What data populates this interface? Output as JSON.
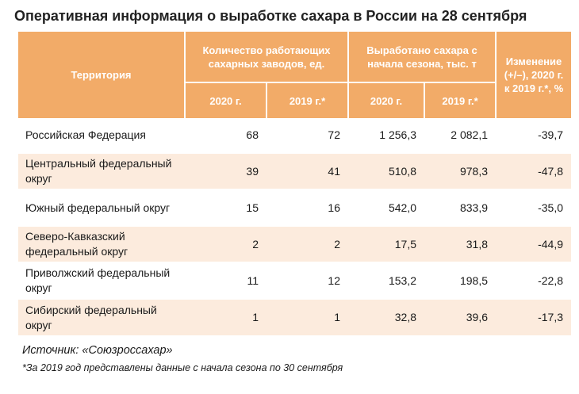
{
  "title": "Оперативная информация о выработке сахара в России на 28 сентября",
  "table": {
    "header": {
      "territory": "Территория",
      "plants_group": "Количество работающих сахарных заводов, ед.",
      "produced_group": "Выработано сахара с начала сезона, тыс. т",
      "change": "Изменение (+/–), 2020 г. к 2019 г.*, %",
      "year_2020": "2020 г.",
      "year_2019": "2019 г.*"
    },
    "rows": [
      {
        "territory": "Российская Федерация",
        "plants_2020": "68",
        "plants_2019": "72",
        "sugar_2020": "1 256,3",
        "sugar_2019": "2 082,1",
        "change": "-39,7"
      },
      {
        "territory": "Центральный федеральный округ",
        "plants_2020": "39",
        "plants_2019": "41",
        "sugar_2020": "510,8",
        "sugar_2019": "978,3",
        "change": "-47,8"
      },
      {
        "territory": "Южный федеральный округ",
        "plants_2020": "15",
        "plants_2019": "16",
        "sugar_2020": "542,0",
        "sugar_2019": "833,9",
        "change": "-35,0"
      },
      {
        "territory": "Северо-Кавказский федеральный округ",
        "plants_2020": "2",
        "plants_2019": "2",
        "sugar_2020": "17,5",
        "sugar_2019": "31,8",
        "change": "-44,9"
      },
      {
        "territory": "Приволжский федеральный округ",
        "plants_2020": "11",
        "plants_2019": "12",
        "sugar_2020": "153,2",
        "sugar_2019": "198,5",
        "change": "-22,8"
      },
      {
        "territory": "Сибирский федеральный округ",
        "plants_2020": "1",
        "plants_2019": "1",
        "sugar_2020": "32,8",
        "sugar_2019": "39,6",
        "change": "-17,3"
      }
    ]
  },
  "source": "Источник: «Союзроссахар»",
  "footnote": "*За 2019 год представлены данные с начала сезона по 30 сентября",
  "colors": {
    "header_bg": "#f2ab68",
    "row_shade": "#fcebdd"
  }
}
